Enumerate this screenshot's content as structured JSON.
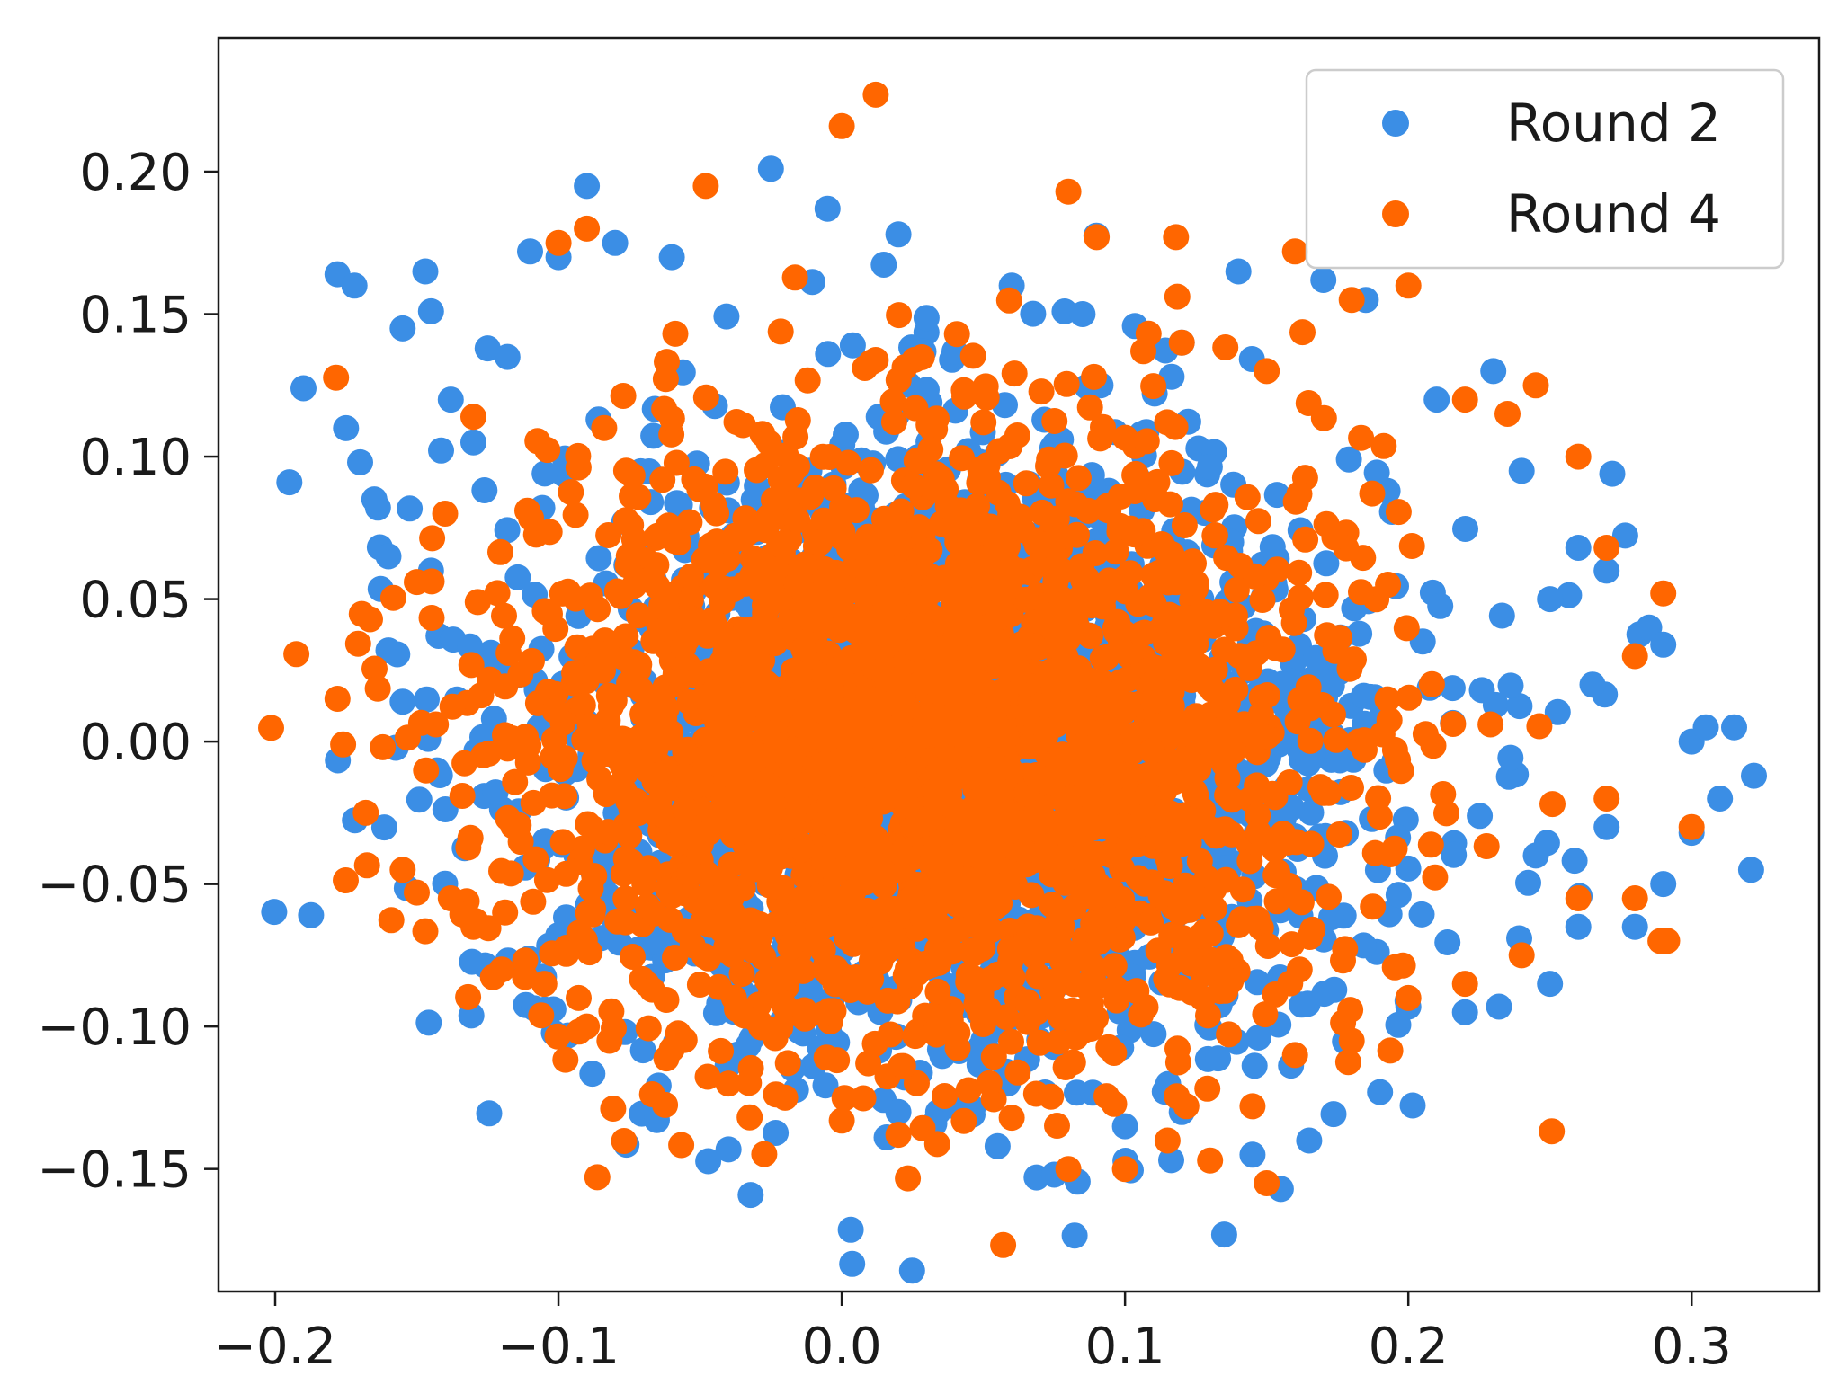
{
  "chart_data": {
    "type": "scatter",
    "xlim": [
      -0.22,
      0.345
    ],
    "ylim": [
      -0.193,
      0.247
    ],
    "x_ticks": [
      -0.2,
      -0.1,
      0.0,
      0.1,
      0.2,
      0.3
    ],
    "x_tick_labels": [
      "−0.2",
      "−0.1",
      "0.0",
      "0.1",
      "0.2",
      "0.3"
    ],
    "y_ticks": [
      -0.15,
      -0.1,
      -0.05,
      0.0,
      0.05,
      0.1,
      0.15,
      0.2
    ],
    "y_tick_labels": [
      "−0.15",
      "−0.10",
      "−0.05",
      "0.00",
      "0.05",
      "0.10",
      "0.15",
      "0.20"
    ],
    "grid": false,
    "legend_position": "top-right",
    "series": [
      {
        "name": "Round 2",
        "color": "#3b8ee5",
        "cloud": {
          "center": [
            0.04,
            -0.005
          ],
          "spread": [
            0.075,
            0.055
          ],
          "count": 2200
        },
        "points": [
          [
            -0.195,
            0.091
          ],
          [
            -0.19,
            0.124
          ],
          [
            -0.178,
            0.164
          ],
          [
            -0.172,
            0.16
          ],
          [
            -0.175,
            0.11
          ],
          [
            -0.165,
            0.085
          ],
          [
            -0.16,
            0.065
          ],
          [
            -0.155,
            0.145
          ],
          [
            -0.147,
            0.165
          ],
          [
            -0.145,
            0.151
          ],
          [
            -0.138,
            0.12
          ],
          [
            -0.13,
            0.105
          ],
          [
            -0.125,
            0.138
          ],
          [
            -0.118,
            0.135
          ],
          [
            -0.11,
            0.172
          ],
          [
            -0.1,
            0.17
          ],
          [
            -0.09,
            0.195
          ],
          [
            -0.08,
            0.175
          ],
          [
            -0.06,
            0.17
          ],
          [
            -0.025,
            0.201
          ],
          [
            -0.005,
            0.187
          ],
          [
            0.02,
            0.178
          ],
          [
            0.06,
            0.16
          ],
          [
            0.085,
            0.15
          ],
          [
            0.12,
            0.14
          ],
          [
            0.14,
            0.165
          ],
          [
            0.17,
            0.162
          ],
          [
            0.185,
            0.155
          ],
          [
            0.21,
            0.12
          ],
          [
            0.23,
            0.13
          ],
          [
            0.24,
            0.095
          ],
          [
            0.26,
            0.068
          ],
          [
            0.27,
            0.06
          ],
          [
            0.272,
            0.094
          ],
          [
            0.285,
            0.04
          ],
          [
            0.29,
            0.034
          ],
          [
            0.3,
            0.0
          ],
          [
            0.305,
            0.005
          ],
          [
            0.31,
            -0.02
          ],
          [
            0.315,
            0.005
          ],
          [
            0.322,
            -0.012
          ],
          [
            0.3,
            -0.032
          ],
          [
            0.321,
            -0.045
          ],
          [
            0.29,
            -0.05
          ],
          [
            0.28,
            -0.065
          ],
          [
            0.26,
            -0.065
          ],
          [
            0.25,
            -0.085
          ],
          [
            0.232,
            -0.093
          ],
          [
            0.22,
            -0.095
          ],
          [
            0.2,
            -0.093
          ],
          [
            0.19,
            -0.123
          ],
          [
            0.165,
            -0.14
          ],
          [
            0.155,
            -0.157
          ],
          [
            0.145,
            -0.145
          ],
          [
            0.135,
            -0.173
          ],
          [
            0.12,
            -0.13
          ],
          [
            0.1,
            -0.135
          ],
          [
            0.075,
            -0.152
          ],
          [
            0.055,
            -0.142
          ],
          [
            0.04,
            -0.128
          ],
          [
            0.02,
            -0.13
          ],
          [
            -0.155,
            0.014
          ],
          [
            -0.16,
            0.032
          ],
          [
            -0.145,
            0.06
          ],
          [
            -0.17,
            0.098
          ],
          [
            0.25,
            0.05
          ],
          [
            0.265,
            0.02
          ],
          [
            0.245,
            -0.04
          ],
          [
            0.27,
            -0.03
          ]
        ]
      },
      {
        "name": "Round 4",
        "color": "#ff6600",
        "cloud": {
          "center": [
            0.03,
            0.0
          ],
          "spread": [
            0.07,
            0.052
          ],
          "count": 2600
        },
        "points": [
          [
            0.012,
            0.227
          ],
          [
            0.0,
            0.216
          ],
          [
            -0.048,
            0.195
          ],
          [
            -0.09,
            0.18
          ],
          [
            -0.1,
            0.175
          ],
          [
            0.08,
            0.193
          ],
          [
            0.09,
            0.177
          ],
          [
            0.118,
            0.177
          ],
          [
            0.16,
            0.172
          ],
          [
            -0.178,
            0.015
          ],
          [
            -0.176,
            -0.001
          ],
          [
            -0.162,
            -0.002
          ],
          [
            -0.168,
            -0.025
          ],
          [
            -0.155,
            -0.045
          ],
          [
            -0.15,
            -0.053
          ],
          [
            -0.138,
            -0.055
          ],
          [
            -0.13,
            -0.065
          ],
          [
            -0.12,
            -0.08
          ],
          [
            -0.105,
            -0.085
          ],
          [
            -0.09,
            -0.1
          ],
          [
            -0.082,
            -0.105
          ],
          [
            -0.06,
            -0.108
          ],
          [
            -0.04,
            -0.12
          ],
          [
            -0.02,
            -0.125
          ],
          [
            0.0,
            -0.133
          ],
          [
            0.02,
            -0.138
          ],
          [
            0.06,
            -0.132
          ],
          [
            0.08,
            -0.15
          ],
          [
            0.1,
            -0.15
          ],
          [
            0.115,
            -0.14
          ],
          [
            0.13,
            -0.147
          ],
          [
            0.15,
            -0.155
          ],
          [
            0.145,
            -0.128
          ],
          [
            0.16,
            -0.11
          ],
          [
            0.18,
            -0.105
          ],
          [
            0.2,
            -0.09
          ],
          [
            0.22,
            -0.085
          ],
          [
            0.24,
            -0.075
          ],
          [
            0.26,
            -0.055
          ],
          [
            0.28,
            -0.055
          ],
          [
            0.289,
            -0.07
          ],
          [
            0.3,
            -0.03
          ],
          [
            0.27,
            -0.02
          ],
          [
            0.28,
            0.03
          ],
          [
            0.29,
            0.052
          ],
          [
            0.27,
            0.068
          ],
          [
            0.26,
            0.1
          ],
          [
            0.245,
            0.125
          ],
          [
            0.235,
            0.115
          ],
          [
            0.22,
            0.12
          ],
          [
            0.2,
            0.16
          ],
          [
            0.18,
            0.155
          ],
          [
            0.15,
            0.13
          ],
          [
            0.12,
            0.14
          ],
          [
            -0.13,
            0.114
          ],
          [
            -0.14,
            0.08
          ],
          [
            -0.15,
            0.056
          ]
        ]
      }
    ],
    "legend": [
      {
        "label": "Round 2"
      },
      {
        "label": "Round 4"
      }
    ]
  }
}
